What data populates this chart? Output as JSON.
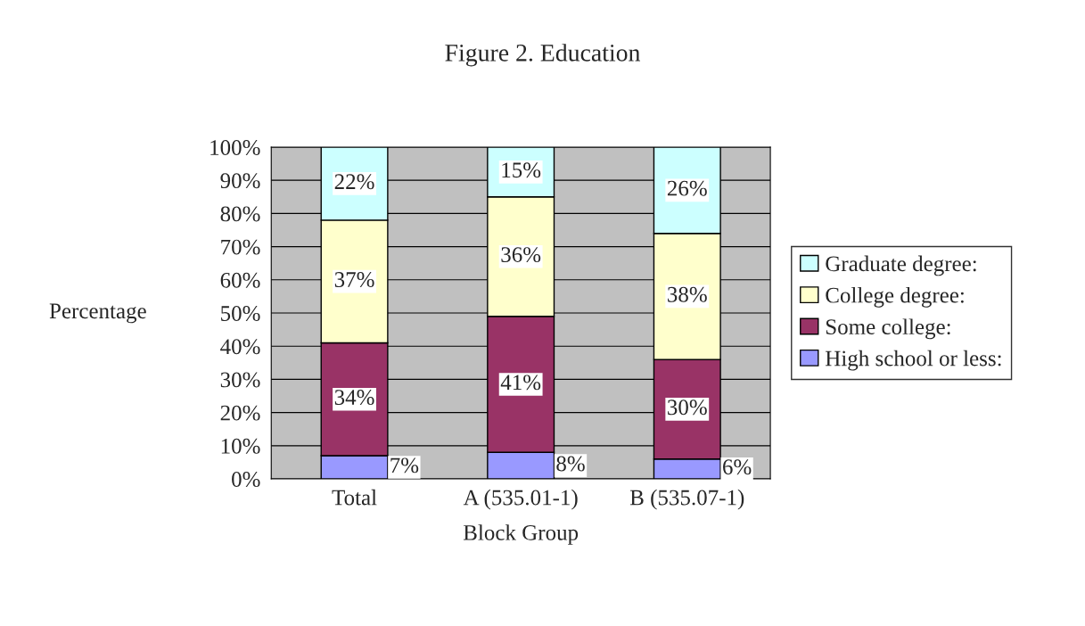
{
  "chart_data": {
    "type": "bar",
    "title": "Figure 2. Education",
    "xlabel": "Block Group",
    "ylabel": "Percentage",
    "categories": [
      "Total",
      "A (535.01-1)",
      "B (535.07-1)"
    ],
    "stacked": true,
    "series": [
      {
        "name": "High school or less:",
        "color": "#9999ff",
        "values": [
          7,
          8,
          6
        ],
        "value_labels": [
          "7%",
          "8%",
          "6%"
        ]
      },
      {
        "name": "Some college:",
        "color": "#993366",
        "values": [
          34,
          41,
          30
        ],
        "value_labels": [
          "34%",
          "41%",
          "30%"
        ]
      },
      {
        "name": "College degree:",
        "color": "#ffffcc",
        "values": [
          37,
          36,
          38
        ],
        "value_labels": [
          "37%",
          "36%",
          "38%"
        ]
      },
      {
        "name": "Graduate degree:",
        "color": "#ccffff",
        "values": [
          22,
          15,
          26
        ],
        "value_labels": [
          "22%",
          "15%",
          "26%"
        ]
      }
    ],
    "ylim": [
      0,
      100
    ],
    "yticks": [
      {
        "value": 0,
        "label": "0%"
      },
      {
        "value": 10,
        "label": "10%"
      },
      {
        "value": 20,
        "label": "20%"
      },
      {
        "value": 30,
        "label": "30%"
      },
      {
        "value": 40,
        "label": "40%"
      },
      {
        "value": 50,
        "label": "50%"
      },
      {
        "value": 60,
        "label": "60%"
      },
      {
        "value": 70,
        "label": "70%"
      },
      {
        "value": 80,
        "label": "80%"
      },
      {
        "value": 90,
        "label": "90%"
      },
      {
        "value": 100,
        "label": "100%"
      }
    ],
    "grid": "y",
    "legend": "right"
  }
}
